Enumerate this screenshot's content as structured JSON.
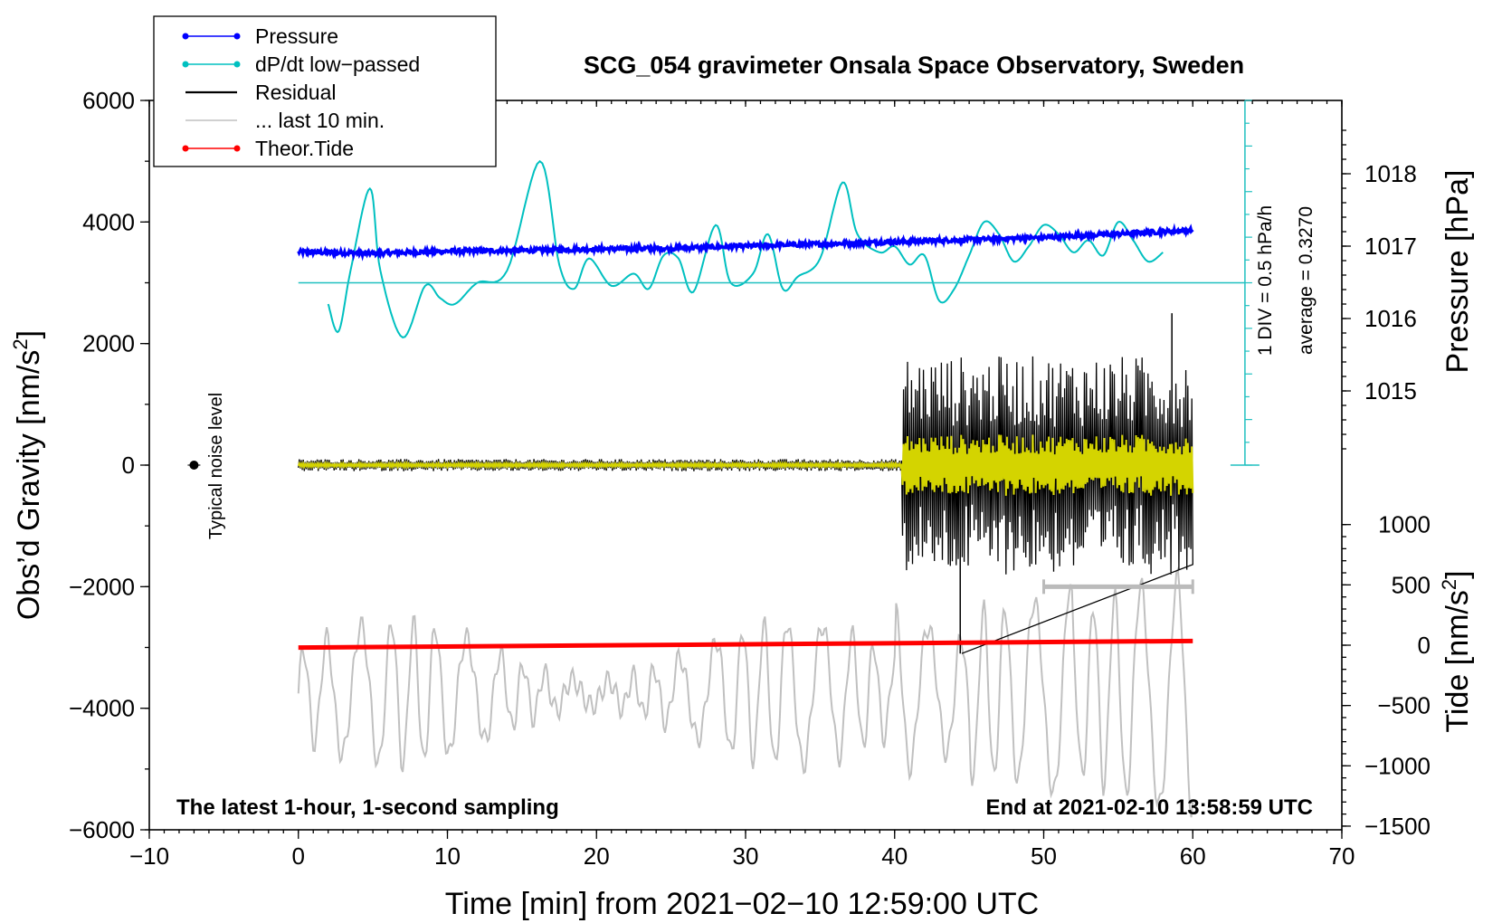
{
  "chart_data": {
    "type": "line",
    "title": "SCG_054 gravimeter Onsala Space Observatory, Sweden",
    "subtitle_left": "The latest 1-hour, 1-second sampling",
    "subtitle_right": "End at 2021-02-10 13:58:59 UTC",
    "xlabel": "Time [min] from 2021−02−10 12:59:00 UTC",
    "xlim": [
      -10,
      70
    ],
    "xticks": [
      "−10",
      "0",
      "10",
      "20",
      "30",
      "40",
      "50",
      "60",
      "70"
    ],
    "ylabel_left": "Obs’d Gravity [nm/s",
    "ylabel_left_sup": "2",
    "ylabel_left_close": "]",
    "ylim_left": [
      -6000,
      6000
    ],
    "yticks_left": [
      "−6000",
      "−4000",
      "−2000",
      "0",
      "2000",
      "4000",
      "6000"
    ],
    "ylabel_pressure": "Pressure [hPa]",
    "pressure_ticks": [
      "1015",
      "1016",
      "1017",
      "1018"
    ],
    "ylabel_tide": "Tide [nm/s",
    "ylabel_tide_sup": "2",
    "ylabel_tide_close": "]",
    "tide_ticks": [
      "−1500",
      "−1000",
      "−500",
      "0",
      "500",
      "1000"
    ],
    "dpdt_scale_label": "1 DIV = 0.5 hPa/h",
    "dpdt_average_label": "average = 0.3270",
    "noise_label": "Typical noise level",
    "noise_marker": {
      "x": -7,
      "y": 0
    },
    "last10_bar": {
      "x_start": 50,
      "x_end": 60,
      "y": -2000
    },
    "legend": [
      {
        "label": "Pressure",
        "color": "#0000ff",
        "marker": true
      },
      {
        "label": "dP/dt low−passed",
        "color": "#00c0c0",
        "marker": true
      },
      {
        "label": "Residual",
        "color": "#000000",
        "marker": false
      },
      {
        "label": "... last 10 min.",
        "color": "#c0c0c0",
        "marker": false
      },
      {
        "label": "Theor.Tide",
        "color": "#ff0000",
        "marker": true
      }
    ],
    "series": [
      {
        "name": "Pressure",
        "axis": "pressure_hPa",
        "color": "#0000ff",
        "x": [
          0,
          5,
          10,
          15,
          20,
          25,
          30,
          35,
          40,
          45,
          50,
          55,
          60
        ],
        "y": [
          1016.92,
          1016.9,
          1016.93,
          1016.94,
          1016.96,
          1016.97,
          1017.0,
          1017.03,
          1017.06,
          1017.09,
          1017.12,
          1017.17,
          1017.22
        ]
      },
      {
        "name": "dP/dt low-passed",
        "axis": "gravity",
        "color": "#00c0c0",
        "x": [
          2,
          2.7,
          3.5,
          4.8,
          5.5,
          7,
          8.5,
          9.5,
          10.5,
          12,
          14,
          16.2,
          17.5,
          18.5,
          19.5,
          21,
          22.5,
          23.5,
          24.5,
          25.5,
          26.5,
          28,
          29,
          30.5,
          31.5,
          32.5,
          33.5,
          35,
          36.5,
          37.5,
          39,
          40,
          41,
          42,
          43,
          44,
          45,
          46,
          47,
          48,
          49,
          50,
          51,
          52,
          53,
          54,
          55,
          56,
          57,
          58
        ],
        "y": [
          2650,
          2200,
          3200,
          4550,
          3200,
          2100,
          2950,
          2750,
          2650,
          3000,
          3200,
          5000,
          3300,
          2900,
          3400,
          2950,
          3150,
          2900,
          3450,
          3400,
          2850,
          3950,
          3000,
          3150,
          3800,
          2900,
          3100,
          3400,
          4650,
          3800,
          3500,
          3600,
          3300,
          3450,
          2700,
          2900,
          3450,
          4000,
          3800,
          3350,
          3600,
          3950,
          3800,
          3500,
          3700,
          3450,
          4000,
          3700,
          3350,
          3500
        ]
      },
      {
        "name": "Residual",
        "axis": "gravity",
        "color": "#000000",
        "summary": {
          "x_range": [
            0,
            60
          ],
          "quiet_amplitude": 100,
          "active_after_min": 40.5,
          "active_amplitude": 1800,
          "peak_max": 2500,
          "spike_min": -3100
        }
      },
      {
        "name": "... last 10 min.",
        "axis": "tide",
        "color": "#c0c0c0",
        "summary": {
          "x_range": [
            0,
            60
          ],
          "mean_nm_s2": -400,
          "amplitude_nm_s2": 900
        }
      },
      {
        "name": "Theor.Tide",
        "axis": "tide",
        "color": "#ff0000",
        "x": [
          0,
          60
        ],
        "y": [
          -20,
          35
        ]
      }
    ]
  }
}
